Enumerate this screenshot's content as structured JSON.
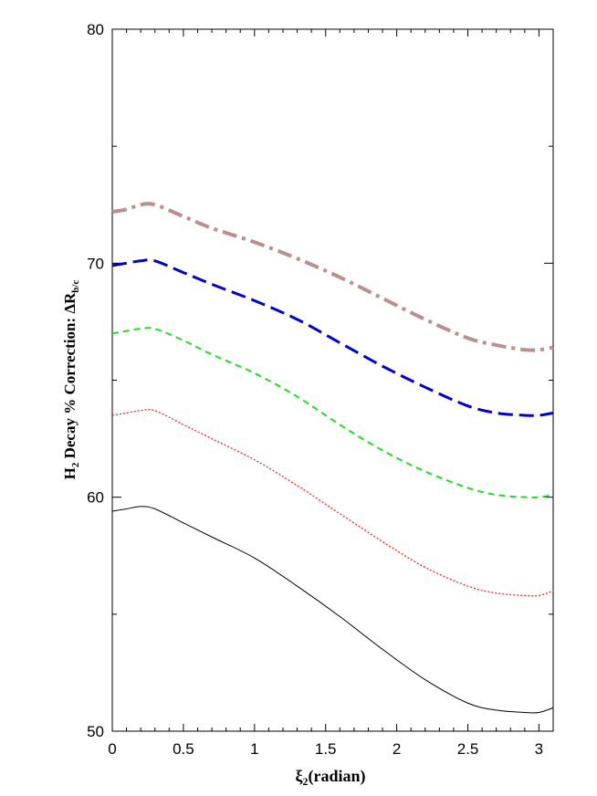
{
  "chart_data": {
    "type": "line",
    "xlabel": {
      "main": "ξ",
      "sub": "2",
      "rest": "(radian)"
    },
    "ylabel": {
      "pre": "H",
      "pre_sub": "2",
      "mid": " Decay  % Correction:  ΔR",
      "post_sub": "b/c"
    },
    "xlim": [
      0,
      3.1
    ],
    "ylim": [
      50,
      80
    ],
    "x_ticks": [
      0,
      0.5,
      1,
      1.5,
      2,
      2.5,
      3
    ],
    "x_tick_labels": [
      "0",
      "0.5",
      "1",
      "1.5",
      "2",
      "2.5",
      "3"
    ],
    "y_ticks": [
      50,
      60,
      70,
      80
    ],
    "y_tick_labels": [
      "50",
      "60",
      "70",
      "80"
    ],
    "grid": false,
    "series": [
      {
        "style": "dash-dot",
        "color": "#bc8f8f",
        "x": [
          0,
          0.1,
          0.2,
          0.3,
          0.5,
          0.7,
          1.0,
          1.3,
          1.6,
          1.9,
          2.2,
          2.5,
          2.7,
          2.9,
          3.0,
          3.1
        ],
        "y": [
          72.2,
          72.3,
          72.5,
          72.5,
          72.0,
          71.5,
          70.9,
          70.2,
          69.4,
          68.5,
          67.6,
          66.8,
          66.5,
          66.3,
          66.3,
          66.4
        ]
      },
      {
        "style": "long-dash",
        "color": "#0000cd",
        "x": [
          0,
          0.1,
          0.2,
          0.3,
          0.5,
          0.7,
          1.0,
          1.3,
          1.6,
          1.9,
          2.2,
          2.5,
          2.7,
          2.9,
          3.0,
          3.1
        ],
        "y": [
          69.9,
          70.0,
          70.1,
          70.1,
          69.6,
          69.1,
          68.4,
          67.6,
          66.6,
          65.6,
          64.7,
          63.9,
          63.6,
          63.5,
          63.5,
          63.6
        ]
      },
      {
        "style": "dashed",
        "color": "#22dd22",
        "x": [
          0,
          0.1,
          0.2,
          0.3,
          0.5,
          0.7,
          1.0,
          1.3,
          1.6,
          1.9,
          2.2,
          2.5,
          2.7,
          2.9,
          3.0,
          3.1
        ],
        "y": [
          67.0,
          67.1,
          67.2,
          67.2,
          66.7,
          66.1,
          65.3,
          64.3,
          63.1,
          62.0,
          61.1,
          60.4,
          60.1,
          60.0,
          60.0,
          60.1
        ]
      },
      {
        "style": "dotted",
        "color": "#ff2020",
        "x": [
          0,
          0.1,
          0.2,
          0.3,
          0.5,
          0.7,
          1.0,
          1.3,
          1.6,
          1.9,
          2.2,
          2.5,
          2.7,
          2.9,
          3.0,
          3.1
        ],
        "y": [
          63.5,
          63.6,
          63.7,
          63.7,
          63.1,
          62.5,
          61.6,
          60.5,
          59.3,
          58.1,
          57.0,
          56.2,
          55.9,
          55.8,
          55.8,
          56.0
        ]
      },
      {
        "style": "solid",
        "color": "#000000",
        "x": [
          0,
          0.1,
          0.2,
          0.3,
          0.5,
          0.7,
          1.0,
          1.3,
          1.6,
          1.9,
          2.2,
          2.5,
          2.7,
          2.9,
          3.0,
          3.1
        ],
        "y": [
          59.4,
          59.5,
          59.6,
          59.5,
          58.9,
          58.3,
          57.4,
          56.2,
          54.9,
          53.5,
          52.2,
          51.2,
          50.9,
          50.8,
          50.8,
          51.0
        ]
      }
    ]
  }
}
